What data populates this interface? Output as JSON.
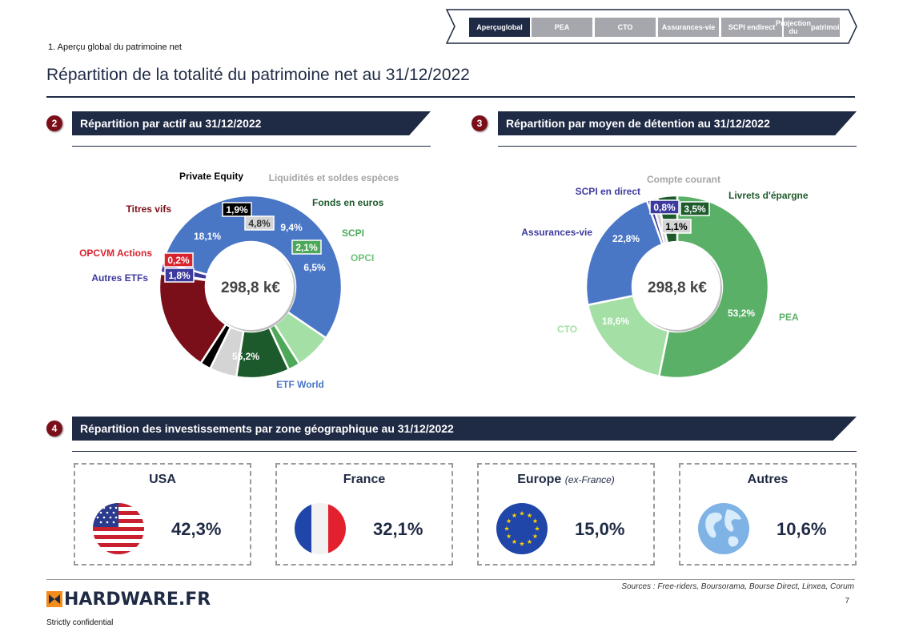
{
  "nav": {
    "tabs": [
      {
        "label_lines": [
          "Aperçu",
          "global"
        ],
        "active": true
      },
      {
        "label_lines": [
          "PEA"
        ],
        "active": false
      },
      {
        "label_lines": [
          "CTO"
        ],
        "active": false
      },
      {
        "label_lines": [
          "Assurances-",
          "vie"
        ],
        "active": false
      },
      {
        "label_lines": [
          "SCPI en",
          "direct"
        ],
        "active": false
      },
      {
        "label_lines": [
          "Projection du",
          "patrimoine"
        ],
        "active": false
      }
    ]
  },
  "breadcrumb": "1. Aperçu global du patrimoine net",
  "page_title": "Répartition de la totalité du patrimoine net au 31/12/2022",
  "sections": {
    "asset": {
      "number": "2",
      "title": "Répartition par actif au 31/12/2022"
    },
    "holding": {
      "number": "3",
      "title": "Répartition par moyen de détention au 31/12/2022"
    },
    "geo": {
      "number": "4",
      "title": "Répartition des investissements par zone géographique au 31/12/2022"
    }
  },
  "chart_data": [
    {
      "type": "pie",
      "variant": "donut",
      "center_label": "298,8 k€",
      "slices": [
        {
          "name": "ETF World",
          "value": 55.2,
          "label": "55,2%",
          "color": "#4a76c6"
        },
        {
          "name": "Autres ETFs",
          "value": 1.8,
          "label": "1,8%",
          "color": "#3d3a9e"
        },
        {
          "name": "OPCVM Actions",
          "value": 0.2,
          "label": "0,2%",
          "color": "#d9232d"
        },
        {
          "name": "Titres vifs",
          "value": 18.1,
          "label": "18,1%",
          "color": "#7b0f19"
        },
        {
          "name": "Private Equity",
          "value": 1.9,
          "label": "1,9%",
          "color": "#000000"
        },
        {
          "name": "Liquidités et soldes espèces",
          "value": 4.8,
          "label": "4,8%",
          "color": "#d4d4d4"
        },
        {
          "name": "Fonds en euros",
          "value": 9.4,
          "label": "9,4%",
          "color": "#1d5a2b"
        },
        {
          "name": "SCPI",
          "value": 2.1,
          "label": "2,1%",
          "color": "#4ea85a"
        },
        {
          "name": "OPCI",
          "value": 6.5,
          "label": "6,5%",
          "color": "#a4dfa6"
        }
      ]
    },
    {
      "type": "pie",
      "variant": "donut",
      "center_label": "298,8 k€",
      "slices": [
        {
          "name": "PEA",
          "value": 53.2,
          "label": "53,2%",
          "color": "#5bb068"
        },
        {
          "name": "CTO",
          "value": 18.6,
          "label": "18,6%",
          "color": "#a4dfa6"
        },
        {
          "name": "Assurances-vie",
          "value": 22.8,
          "label": "22,8%",
          "color": "#4a76c6"
        },
        {
          "name": "SCPI en direct",
          "value": 0.8,
          "label": "0,8%",
          "color": "#3d3a9e"
        },
        {
          "name": "Compte courant",
          "value": 1.1,
          "label": "1,1%",
          "color": "#d4d4d4"
        },
        {
          "name": "Livrets d'épargne",
          "value": 3.5,
          "label": "3,5%",
          "color": "#1d5a2b"
        }
      ]
    }
  ],
  "geo": [
    {
      "zone": "USA",
      "note": "",
      "value": "42,3%",
      "flag": "usa-flag-icon"
    },
    {
      "zone": "France",
      "note": "",
      "value": "32,1%",
      "flag": "france-flag-icon"
    },
    {
      "zone": "Europe",
      "note": "(ex-France)",
      "value": "15,0%",
      "flag": "eu-flag-icon"
    },
    {
      "zone": "Autres",
      "note": "",
      "value": "10,6%",
      "flag": "globe-icon"
    }
  ],
  "footer": {
    "sources": "Sources : Free-riders, Boursorama, Bourse Direct, Linxea, Corum",
    "page_number": "7",
    "logo_text": "HARDWARE.FR",
    "confidential": "Strictly confidential"
  }
}
